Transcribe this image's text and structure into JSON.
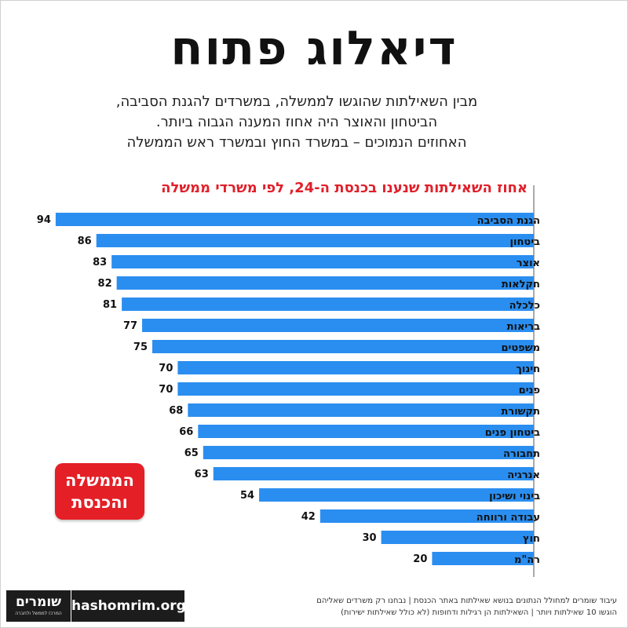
{
  "header": {
    "title": "דיאלוג פתוח",
    "subtitle_lines": [
      "מבין השאילתות שהוגשו לממשלה, במשרדים להגנת הסביבה,",
      "הביטחון והאוצר היה אחוז המענה הגבוה ביותר.",
      "האחוזים הנמוכים – במשרד החוץ ובמשרד ראש הממשלה"
    ]
  },
  "badge": {
    "line1": "הממשלה",
    "line2": "והכנסת",
    "color": "#e41f26"
  },
  "branding": {
    "logo_text": "שומרים",
    "logo_subtext": "המרכז לממשל ולחברה",
    "site": "hashomrim.org"
  },
  "footer": {
    "line1": "עיבוד שומרים למחולל הנתונים בנושא שאילתות באתר הכנסת | נבחנו רק משרדים שאליהם",
    "line2": "הוגשו 10 שאילתות ויותר | השאילתות הן רגילות ודחופות (לא כולל שאילתות ישירות)"
  },
  "chart_data": {
    "type": "bar",
    "orientation": "horizontal",
    "title": "אחוז השאילתות שנענו בכנסת ה-24, לפי משרדי ממשלה",
    "categories": [
      "הגנת הסביבה",
      "ביטחון",
      "אוצר",
      "חקלאות",
      "כלכלה",
      "בריאות",
      "משפטים",
      "חינוך",
      "פנים",
      "תקשורת",
      "ביטחון פנים",
      "תחבורה",
      "אנרגיה",
      "בינוי ושיכון",
      "עבודה ורווחה",
      "חוץ",
      "רה\"מ"
    ],
    "values": [
      94,
      86,
      83,
      82,
      81,
      77,
      75,
      70,
      70,
      68,
      66,
      65,
      63,
      54,
      42,
      30,
      20
    ],
    "xlim": [
      0,
      100
    ],
    "bar_color": "#2a8ef0",
    "title_color": "#e0202a",
    "grid": false,
    "data_labels": true
  }
}
